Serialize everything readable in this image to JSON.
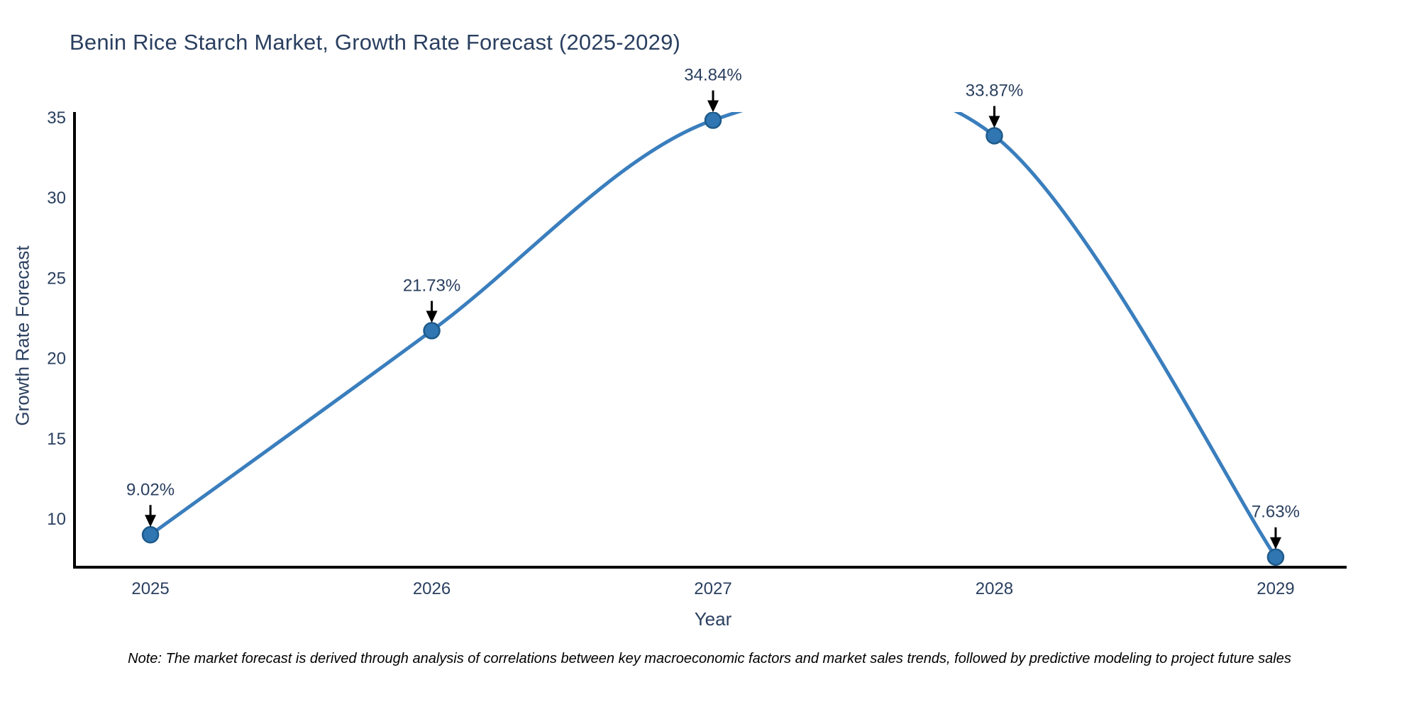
{
  "note": "Note: The market forecast is derived through analysis of correlations between key macroeconomic factors and market sales trends, followed by predictive modeling to project future sales",
  "chart_data": {
    "type": "line",
    "line_shape": "spline",
    "title": "Benin Rice Starch Market, Growth Rate Forecast (2025-2029)",
    "xlabel": "Year",
    "ylabel": "Growth Rate Forecast",
    "x": [
      2025,
      2026,
      2027,
      2028,
      2029
    ],
    "y": [
      9.02,
      21.73,
      34.84,
      33.87,
      7.63
    ],
    "point_labels": [
      "9.02%",
      "21.73%",
      "34.84%",
      "33.87%",
      "7.63%"
    ],
    "xticks": [
      2025,
      2026,
      2027,
      2028,
      2029
    ],
    "yticks": [
      10,
      15,
      20,
      25,
      30,
      35
    ],
    "xlim": [
      2024.73,
      2029.27
    ],
    "ylim": [
      7.0,
      35.35
    ],
    "grid": false,
    "legend": "none",
    "colors": {
      "line": "#3a7ebd",
      "marker": "#2f76b2",
      "marker_edge": "#1e5a8a",
      "axis": "#000000",
      "tick_text": "#2a3f5f",
      "annotation_text": "#2a3f5f",
      "annotation_arrow": "#000000",
      "background": "#ffffff"
    }
  }
}
